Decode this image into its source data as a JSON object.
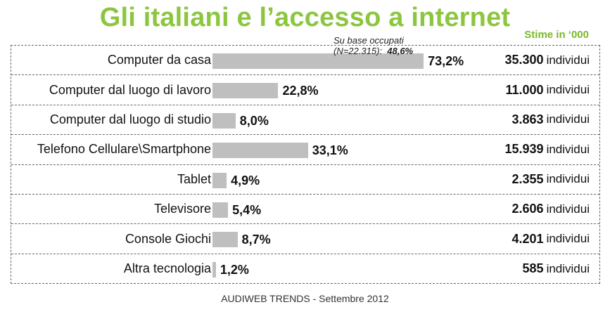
{
  "title": "Gli italiani e l’accesso a internet",
  "subtitle": "Stime in ‘000",
  "colors": {
    "title": "#8cc63f",
    "subtitle": "#7ab829",
    "bar": "#bfbfbf"
  },
  "note": {
    "line1": "Su base occupati",
    "line2": "(N=22.315):",
    "value": "48,6%"
  },
  "source": "AUDIWEB TRENDS - Settembre 2012",
  "chart_data": {
    "type": "bar",
    "orientation": "horizontal",
    "categories": [
      "Computer da casa",
      "Computer dal luogo di lavoro",
      "Computer dal luogo di studio",
      "Telefono Cellulare\\Smartphone",
      "Tablet",
      "Televisore",
      "Console Giochi",
      "Altra tecnologia"
    ],
    "values": [
      73.2,
      22.8,
      8.0,
      33.1,
      4.9,
      5.4,
      8.7,
      1.2
    ],
    "value_labels": [
      "73,2%",
      "22,8%",
      "8,0%",
      "33,1%",
      "4,9%",
      "5,4%",
      "8,7%",
      "1,2%"
    ],
    "counts": [
      "35.300",
      "11.000",
      "3.863",
      "15.939",
      "2.355",
      "2.606",
      "4.201",
      "585"
    ],
    "count_unit": "individui",
    "grid": false
  }
}
